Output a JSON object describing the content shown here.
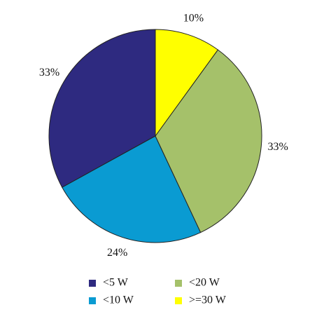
{
  "chart_data": {
    "type": "pie",
    "categories": [
      "<5 W",
      "<10 W",
      "<20 W",
      ">=30 W"
    ],
    "values": [
      33,
      24,
      33,
      10
    ],
    "value_labels": [
      "33%",
      "24%",
      "33%",
      "10%"
    ],
    "colors": [
      "#2e2a80",
      "#0a9bd2",
      "#a5c16a",
      "#ffff00"
    ],
    "legend": "bottom"
  }
}
